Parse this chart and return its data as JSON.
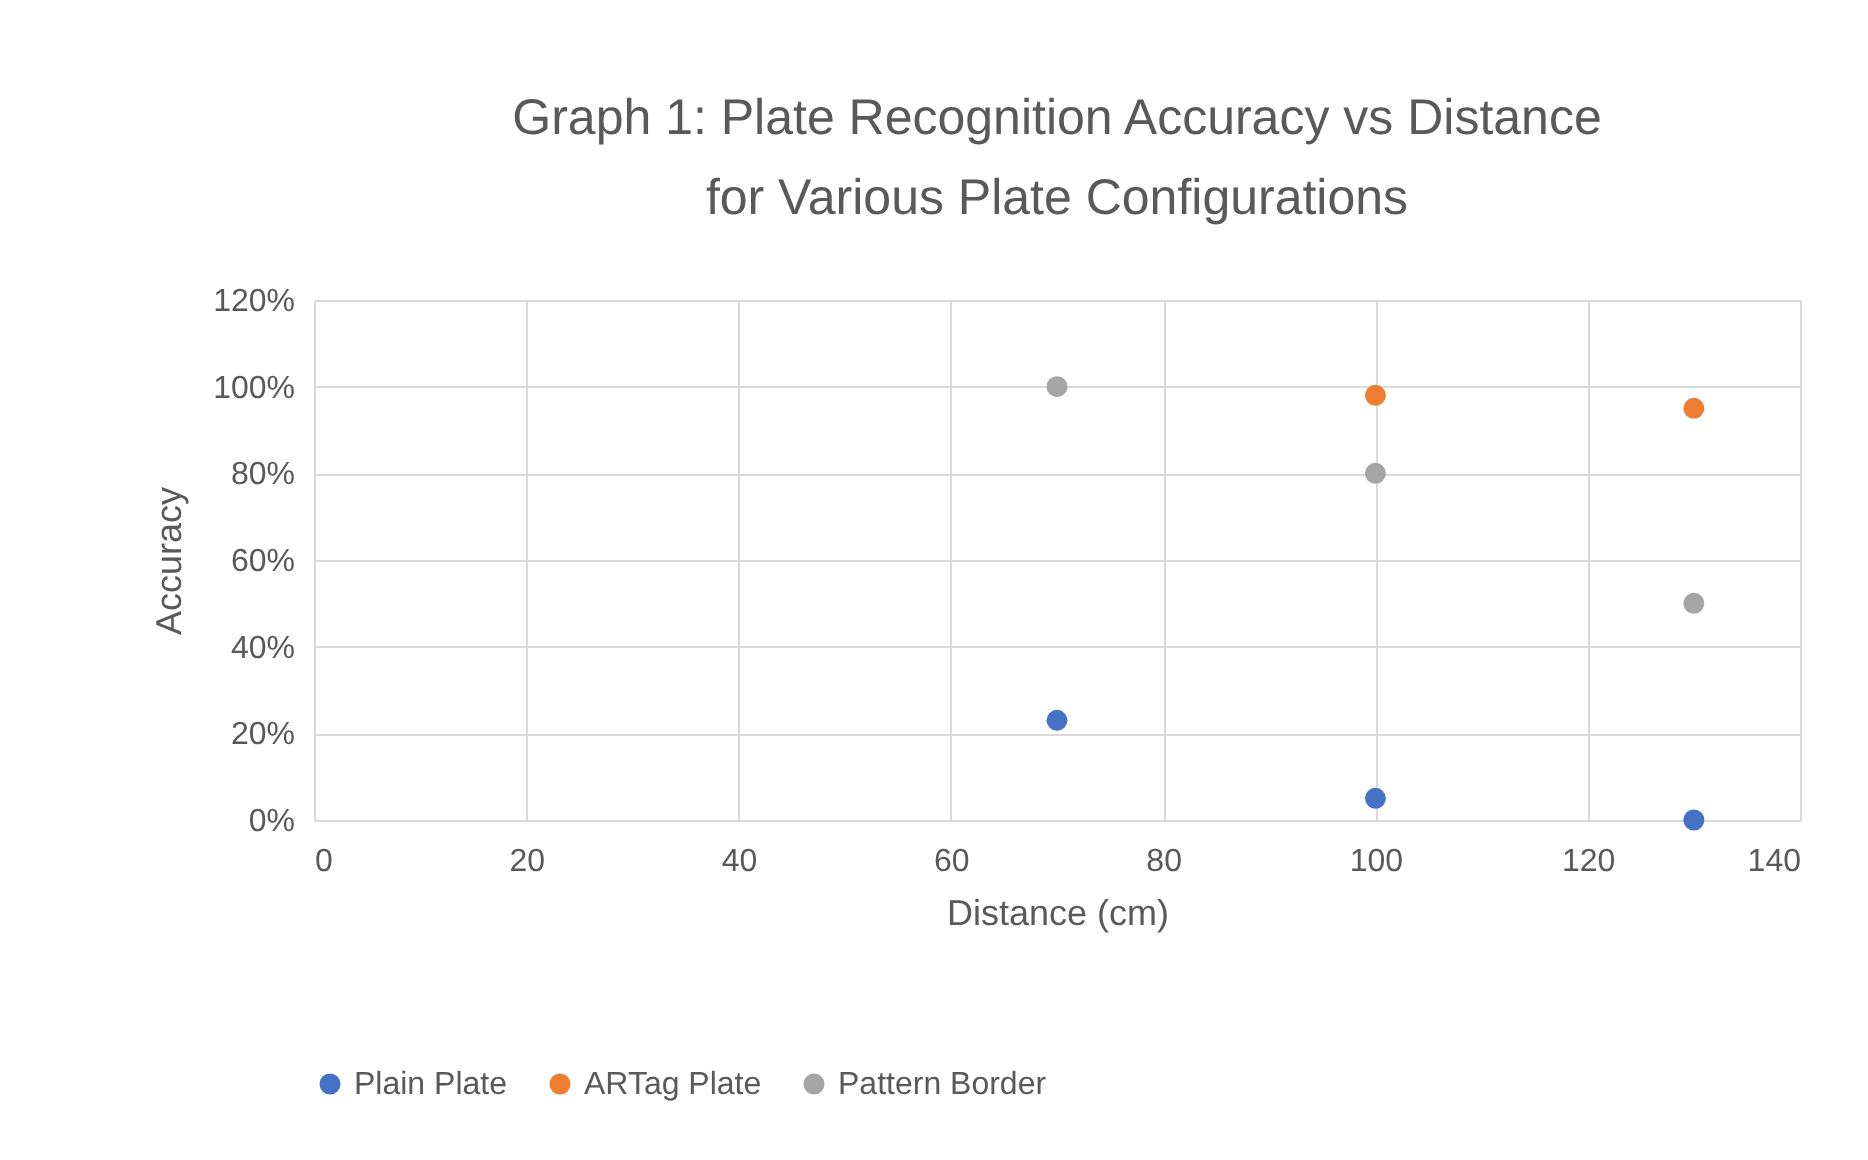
{
  "chart_data": {
    "type": "scatter",
    "title": "Graph 1: Plate Recognition Accuracy vs Distance for Various Plate Configurations",
    "xlabel": "Distance (cm)",
    "ylabel": "Accuracy",
    "series": [
      {
        "name": "Plain Plate",
        "color": "#4472c4",
        "x": [
          70,
          100,
          130
        ],
        "values": [
          23,
          5,
          0
        ]
      },
      {
        "name": "ARTag Plate",
        "color": "#ed7d31",
        "x": [
          100,
          130
        ],
        "values": [
          98,
          95
        ]
      },
      {
        "name": "Pattern Border",
        "color": "#a5a5a5",
        "x": [
          70,
          100,
          130
        ],
        "values": [
          100,
          80,
          50
        ]
      }
    ],
    "xlim": [
      0,
      140
    ],
    "xticks": [
      0,
      20,
      40,
      60,
      80,
      100,
      120,
      140
    ],
    "ylim": [
      0,
      120
    ],
    "yticks": [
      {
        "value": 0,
        "label": "0%"
      },
      {
        "value": 20,
        "label": "20%"
      },
      {
        "value": 40,
        "label": "40%"
      },
      {
        "value": 60,
        "label": "60%"
      },
      {
        "value": 80,
        "label": "80%"
      },
      {
        "value": 100,
        "label": "100%"
      },
      {
        "value": 120,
        "label": "120%"
      }
    ],
    "grid": true,
    "legend": "bottom",
    "marker": "circle"
  }
}
